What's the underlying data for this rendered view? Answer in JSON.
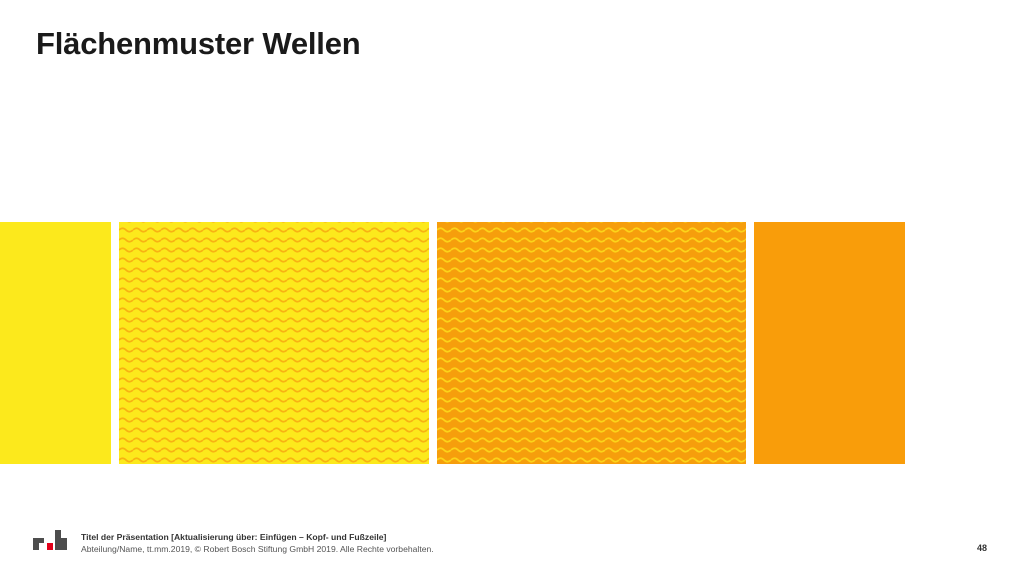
{
  "slide": {
    "title": "Flächenmuster Wellen"
  },
  "swatches": [
    {
      "name": "yellow-solid",
      "pattern": "none",
      "background": "#FCE91C",
      "wave": null
    },
    {
      "name": "yellow-waves",
      "pattern": "wave",
      "background": "#FCE91C",
      "wave": "#F8B212"
    },
    {
      "name": "orange-waves",
      "pattern": "wave",
      "background": "#F69E0C",
      "wave": "#FCD319"
    },
    {
      "name": "orange-solid",
      "pattern": "none",
      "background": "#F99D0A",
      "wave": null
    }
  ],
  "footer": {
    "logo": "rb-logo-icon",
    "logo_color_dark": "#4d4d4d",
    "logo_color_accent": "#e2001a",
    "presentation_title": "Titel der Präsentation [Aktualisierung über: Einfügen – Kopf- und Fußzeile]",
    "meta": "Abteilung/Name, tt.mm.2019, © Robert Bosch Stiftung GmbH 2019. Alle Rechte vorbehalten.",
    "page_number": "48"
  }
}
